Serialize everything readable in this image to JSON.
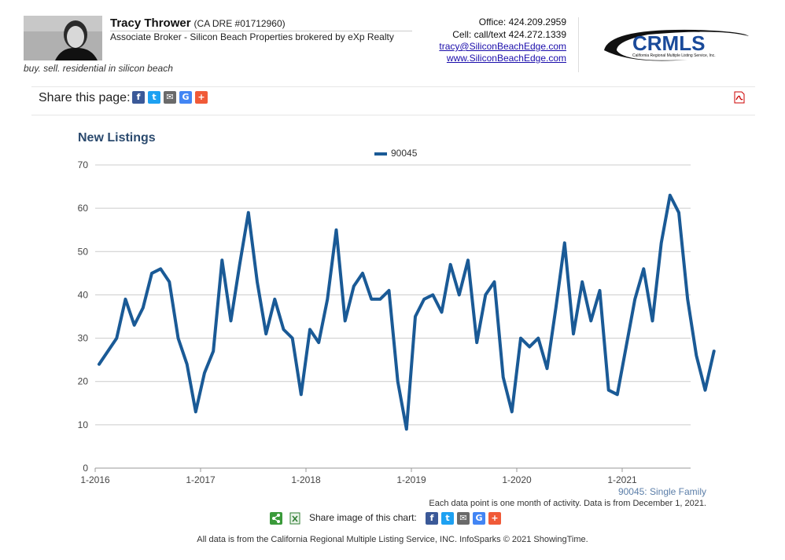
{
  "agent": {
    "name": "Tracy Thrower",
    "dre": "(CA DRE #01712960)",
    "title": "Associate Broker - Silicon Beach Properties brokered by eXp Realty",
    "tagline": "buy. sell. residential in silicon beach",
    "office": "Office: 424.209.2959",
    "cell": "Cell: call/text 424.272.1339",
    "email": "tracy@SiliconBeachEdge.com",
    "website": "www.SiliconBeachEdge.com"
  },
  "logo": {
    "text": "CRMLS",
    "subtext": "California Regional Multiple Listing Service, Inc."
  },
  "share": {
    "label": "Share this page:"
  },
  "share_image": {
    "label": "Share image of this chart:"
  },
  "notes": {
    "series": "90045: Single Family",
    "data": "Each data point is one month of activity. Data is from December 1, 2021."
  },
  "footer": "All data is from the California Regional Multiple Listing Service, INC. InfoSparks © 2021 ShowingTime.",
  "colors": {
    "line": "#1a5a96",
    "title": "#2b4a6e",
    "grid": "#cccccc"
  },
  "chart_data": {
    "type": "line",
    "title": "New Listings",
    "legend_position": "top-center",
    "grid": true,
    "xlabel": "",
    "ylabel": "",
    "ylim": [
      0,
      70
    ],
    "yticks": [
      0,
      10,
      20,
      30,
      40,
      50,
      60,
      70
    ],
    "xticks": [
      "1-2016",
      "1-2017",
      "1-2018",
      "1-2019",
      "1-2020",
      "1-2021"
    ],
    "x_start": "1-2016",
    "series": [
      {
        "name": "90045",
        "values": [
          24,
          27,
          30,
          39,
          33,
          37,
          45,
          46,
          43,
          30,
          24,
          13,
          22,
          27,
          48,
          34,
          47,
          59,
          43,
          31,
          39,
          32,
          30,
          17,
          32,
          29,
          39,
          55,
          34,
          42,
          45,
          39,
          39,
          41,
          20,
          9,
          35,
          39,
          40,
          36,
          47,
          40,
          48,
          29,
          40,
          43,
          21,
          13,
          30,
          28,
          30,
          23,
          37,
          52,
          31,
          43,
          34,
          41,
          18,
          17,
          28,
          39,
          46,
          34,
          52,
          63,
          59,
          39,
          26,
          18,
          27
        ]
      }
    ]
  }
}
